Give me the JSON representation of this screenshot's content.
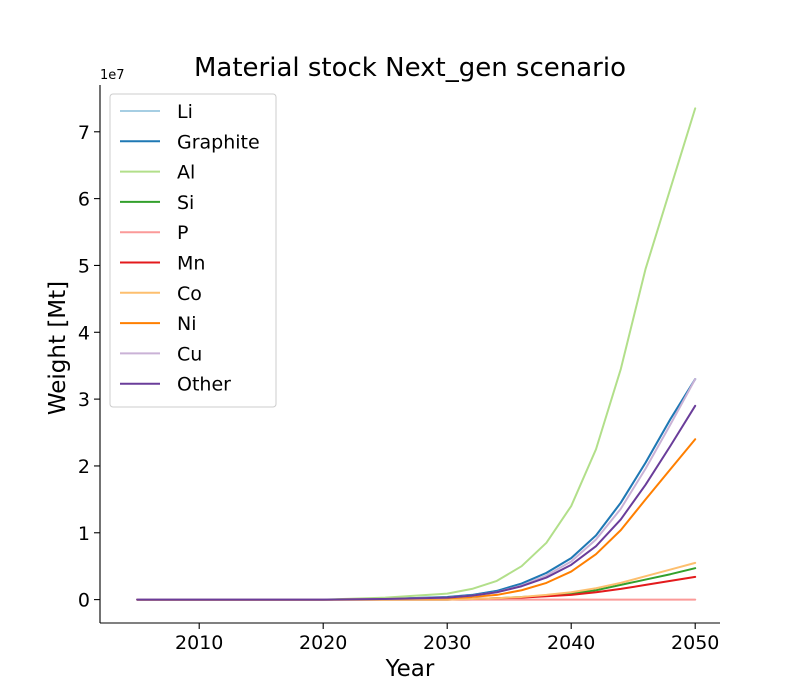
{
  "chart_data": {
    "type": "line",
    "title": "Material stock Next_gen scenario",
    "xlabel": "Year",
    "ylabel": "Weight [Mt]",
    "y_offset_text": "1e7",
    "xlim": [
      2002,
      2052
    ],
    "ylim": [
      -0.35,
      7.7
    ],
    "y_scale_note": "values in units of 1e7",
    "x_ticks": [
      2010,
      2020,
      2030,
      2040,
      2050
    ],
    "x_tick_labels": [
      "2010",
      "2020",
      "2030",
      "2040",
      "2050"
    ],
    "y_ticks": [
      0,
      1,
      2,
      3,
      4,
      5,
      6,
      7
    ],
    "y_tick_labels": [
      "0",
      "1",
      "2",
      "3",
      "4",
      "5",
      "6",
      "7"
    ],
    "legend_position": "top-left",
    "grid": false,
    "x": [
      2005,
      2010,
      2015,
      2020,
      2025,
      2030,
      2032,
      2034,
      2036,
      2038,
      2040,
      2042,
      2044,
      2046,
      2048,
      2050
    ],
    "series": [
      {
        "name": "Li",
        "color": "#a6cee3",
        "values": [
          0,
          0,
          0,
          0,
          0.01,
          0.04,
          0.07,
          0.13,
          0.24,
          0.4,
          0.62,
          0.96,
          1.45,
          2.05,
          2.7,
          3.3
        ]
      },
      {
        "name": "Graphite",
        "color": "#1f78b4",
        "values": [
          0,
          0,
          0,
          0,
          0.01,
          0.04,
          0.07,
          0.13,
          0.24,
          0.4,
          0.62,
          0.96,
          1.45,
          2.05,
          2.7,
          3.3
        ]
      },
      {
        "name": "Al",
        "color": "#b2df8a",
        "values": [
          0,
          0,
          0,
          0,
          0.03,
          0.09,
          0.16,
          0.28,
          0.5,
          0.85,
          1.4,
          2.25,
          3.45,
          4.95,
          6.15,
          7.35
        ]
      },
      {
        "name": "Si",
        "color": "#33a02c",
        "values": [
          0,
          0,
          0,
          0,
          0,
          0,
          0.01,
          0.02,
          0.04,
          0.06,
          0.09,
          0.14,
          0.22,
          0.3,
          0.38,
          0.47
        ]
      },
      {
        "name": "P",
        "color": "#fb9a99",
        "values": [
          0,
          0,
          0,
          0,
          0,
          0,
          0,
          0,
          0,
          0,
          0,
          0,
          0,
          0,
          0,
          0
        ]
      },
      {
        "name": "Mn",
        "color": "#e31a1c",
        "values": [
          0,
          0,
          0,
          0,
          0,
          0,
          0.01,
          0.02,
          0.03,
          0.05,
          0.07,
          0.11,
          0.16,
          0.22,
          0.28,
          0.34
        ]
      },
      {
        "name": "Co",
        "color": "#fdbf6f",
        "values": [
          0,
          0,
          0,
          0,
          0,
          0,
          0.01,
          0.02,
          0.04,
          0.07,
          0.11,
          0.17,
          0.25,
          0.35,
          0.45,
          0.55
        ]
      },
      {
        "name": "Ni",
        "color": "#ff7f00",
        "values": [
          0,
          0,
          0,
          0,
          0.01,
          0.02,
          0.04,
          0.07,
          0.14,
          0.25,
          0.42,
          0.68,
          1.04,
          1.5,
          1.95,
          2.4
        ]
      },
      {
        "name": "Cu",
        "color": "#cab2d6",
        "values": [
          0,
          0,
          0,
          0,
          0.01,
          0.03,
          0.06,
          0.11,
          0.21,
          0.36,
          0.57,
          0.9,
          1.36,
          1.96,
          2.62,
          3.3
        ]
      },
      {
        "name": "Other",
        "color": "#6a3d9a",
        "values": [
          0,
          0,
          0,
          0,
          0.01,
          0.03,
          0.06,
          0.11,
          0.2,
          0.33,
          0.52,
          0.8,
          1.2,
          1.72,
          2.3,
          2.9
        ]
      }
    ]
  }
}
